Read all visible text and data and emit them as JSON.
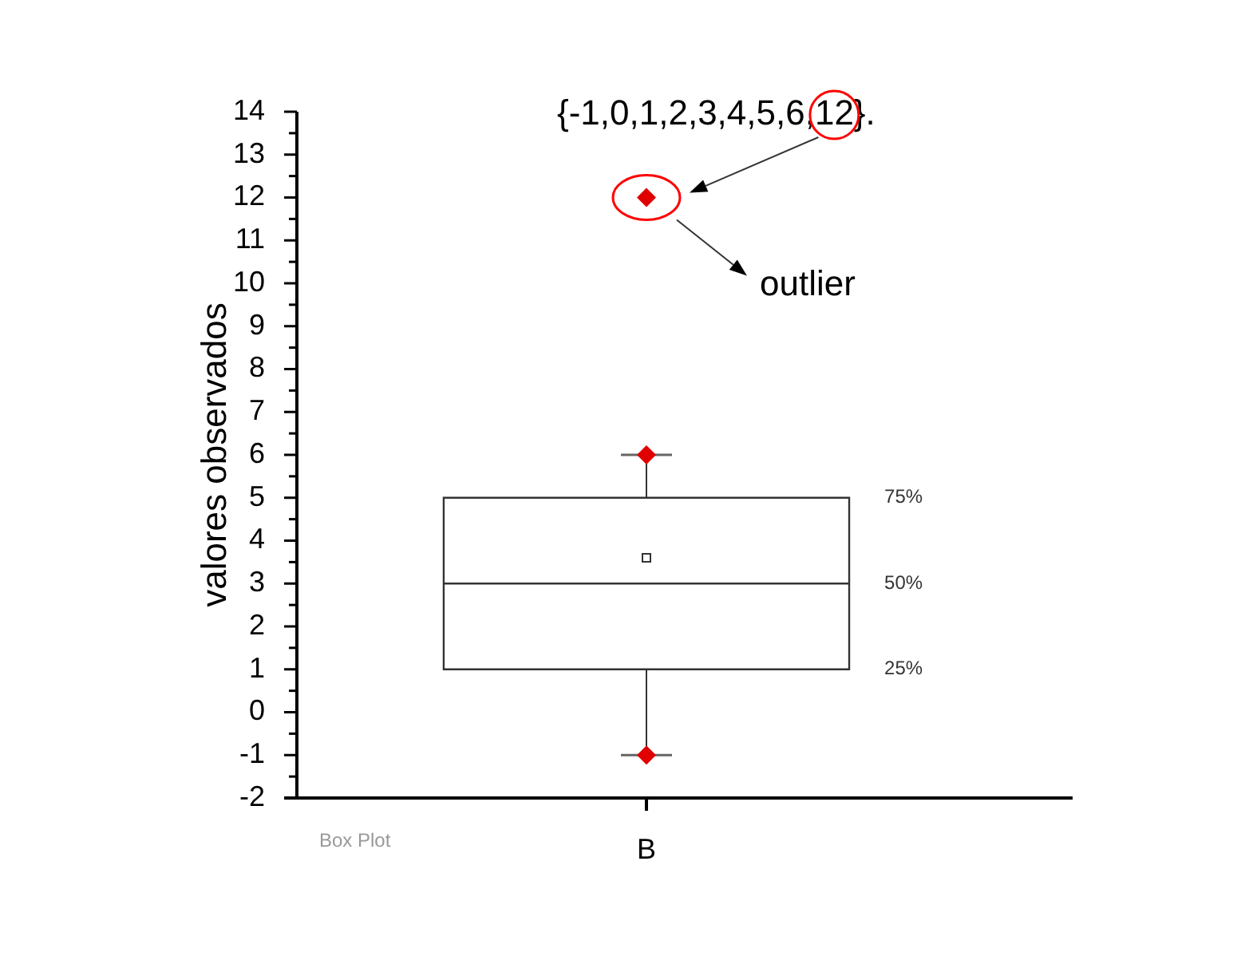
{
  "chart_data": {
    "type": "box",
    "categories": [
      "B"
    ],
    "ylabel": "valores observados",
    "series": [
      {
        "type": "box",
        "color": "#333333",
        "boxes": [
          {
            "low": -1,
            "q1": 1,
            "median": 3,
            "q3": 5,
            "high": 6,
            "mean": 3.6,
            "outliers": [
              12
            ]
          }
        ]
      },
      {
        "type": "scatter",
        "x": [
          "B",
          "B"
        ],
        "values": [
          -1,
          6
        ],
        "color": "#e00000",
        "marker": "diamond"
      }
    ],
    "ylim": [
      -2,
      14
    ],
    "yticks": [
      -2,
      {
        "value": -1.5,
        "label": null
      },
      -1,
      {
        "value": -0.5,
        "label": null
      },
      0,
      {
        "value": 0.5,
        "label": null
      },
      1,
      {
        "value": 1.5,
        "label": null
      },
      2,
      {
        "value": 2.5,
        "label": null
      },
      3,
      {
        "value": 3.5,
        "label": null
      },
      4,
      {
        "value": 4.5,
        "label": null
      },
      5,
      {
        "value": 5.5,
        "label": null
      },
      6,
      {
        "value": 6.5,
        "label": null
      },
      7,
      {
        "value": 7.5,
        "label": null
      },
      8,
      {
        "value": 8.5,
        "label": null
      },
      9,
      {
        "value": 9.5,
        "label": null
      },
      10,
      {
        "value": 10.5,
        "label": null
      },
      11,
      {
        "value": 11.5,
        "label": null
      },
      12,
      {
        "value": 12.5,
        "label": null
      },
      13,
      {
        "value": 13.5,
        "label": null
      },
      14
    ],
    "annotations": [
      "{-1,0,1,2,3,4,5,6,12}.",
      "outlier",
      "75%",
      "50%",
      "25%",
      "Box Plot"
    ]
  }
}
